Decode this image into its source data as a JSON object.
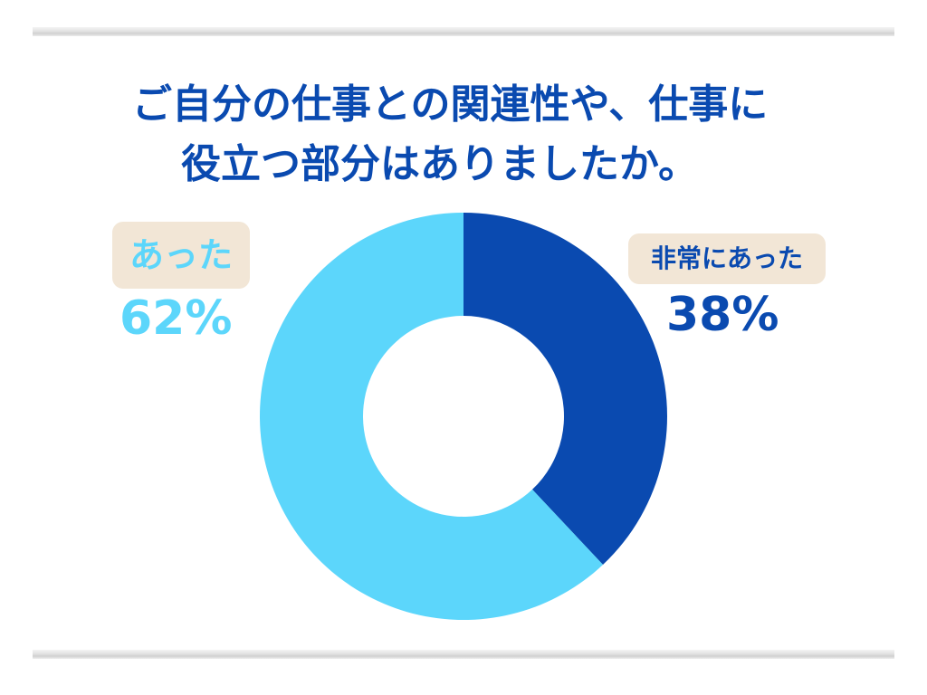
{
  "title_lines": [
    "ご自分の仕事との関連性や、仕事に",
    "役立つ部分はありましたか。"
  ],
  "chart_data": {
    "type": "pie",
    "variant": "donut",
    "slices": [
      {
        "label": "非常にあった",
        "value": 38,
        "value_label": "38%",
        "color": "#0a4ab0"
      },
      {
        "label": "あった",
        "value": 62,
        "value_label": "62%",
        "color": "#5cd6fb"
      }
    ]
  },
  "colors": {
    "dark_blue": "#0a4ab0",
    "light_blue": "#5cd6fb",
    "label_background": "#f2e6d6"
  }
}
